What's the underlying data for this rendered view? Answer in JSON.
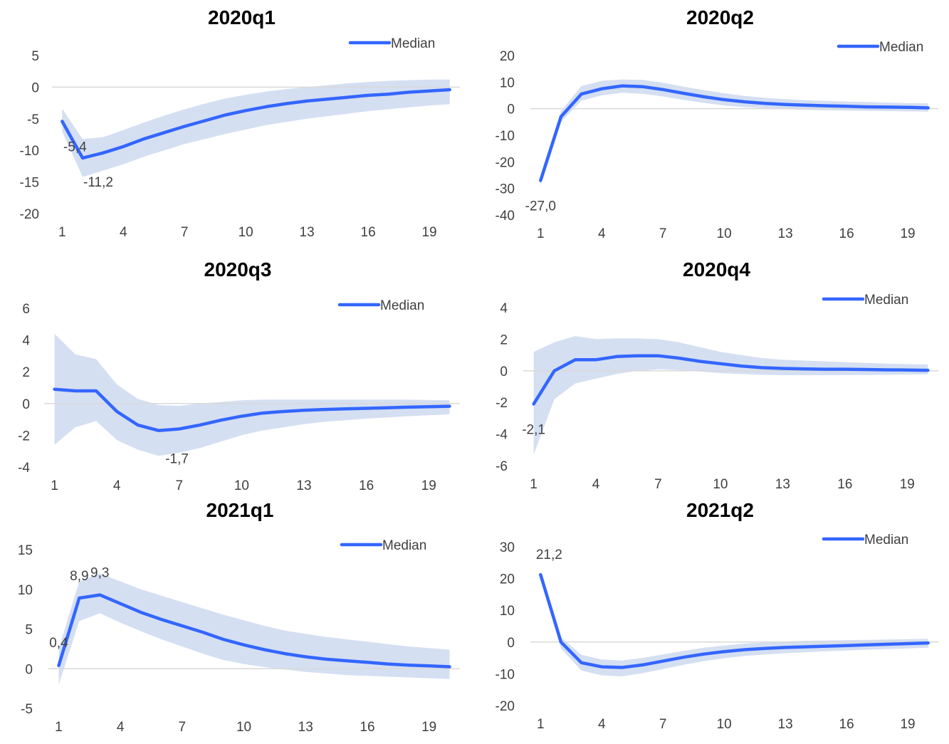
{
  "chart_data": [
    {
      "type": "line",
      "title": "2020q1",
      "x": [
        1,
        2,
        3,
        4,
        5,
        6,
        7,
        8,
        9,
        10,
        11,
        12,
        13,
        14,
        15,
        16,
        17,
        18,
        19,
        20
      ],
      "x_ticks": [
        1,
        4,
        7,
        10,
        13,
        16,
        19
      ],
      "y_ticks": [
        5,
        0,
        -5,
        -10,
        -15,
        -20
      ],
      "ylim": [
        -20,
        5
      ],
      "legend": "top-right",
      "series": [
        {
          "name": "Median",
          "color": "#3366ff",
          "values": [
            -5.4,
            -11.2,
            -10.4,
            -9.4,
            -8.2,
            -7.2,
            -6.2,
            -5.3,
            -4.4,
            -3.7,
            -3.1,
            -2.6,
            -2.2,
            -1.9,
            -1.6,
            -1.3,
            -1.1,
            -0.8,
            -0.6,
            -0.4
          ]
        }
      ],
      "band": {
        "color": "#d5dff2",
        "upper": [
          -3.4,
          -8.2,
          -7.9,
          -6.8,
          -5.6,
          -4.5,
          -3.5,
          -2.6,
          -1.8,
          -1.2,
          -0.7,
          -0.3,
          0.0,
          0.3,
          0.6,
          0.8,
          1.0,
          1.1,
          1.2,
          1.2
        ],
        "lower": [
          -7.0,
          -14.2,
          -13.2,
          -12.2,
          -11.0,
          -10.0,
          -9.0,
          -8.2,
          -7.4,
          -6.7,
          -6.0,
          -5.5,
          -5.0,
          -4.6,
          -4.2,
          -3.8,
          -3.5,
          -3.2,
          -2.9,
          -2.7
        ]
      },
      "data_labels": [
        {
          "x": 1,
          "text": "-5,4"
        },
        {
          "x": 2,
          "text": "-11,2"
        }
      ]
    },
    {
      "type": "line",
      "title": "2020q2",
      "x": [
        1,
        2,
        3,
        4,
        5,
        6,
        7,
        8,
        9,
        10,
        11,
        12,
        13,
        14,
        15,
        16,
        17,
        18,
        19,
        20
      ],
      "x_ticks": [
        1,
        4,
        7,
        10,
        13,
        16,
        19
      ],
      "y_ticks": [
        20,
        10,
        0,
        -10,
        -20,
        -30,
        -40
      ],
      "ylim": [
        -40,
        20
      ],
      "legend": "top-right",
      "series": [
        {
          "name": "Median",
          "color": "#3366ff",
          "values": [
            -27.0,
            -3.0,
            5.5,
            7.5,
            8.6,
            8.3,
            7.2,
            5.8,
            4.5,
            3.4,
            2.6,
            2.0,
            1.6,
            1.3,
            1.1,
            0.9,
            0.7,
            0.6,
            0.5,
            0.3
          ]
        }
      ],
      "band": {
        "color": "#d5dff2",
        "upper": [
          -25.0,
          -1.0,
          8.5,
          10.5,
          11.0,
          10.8,
          9.8,
          8.3,
          7.0,
          5.8,
          4.8,
          4.1,
          3.6,
          3.2,
          2.9,
          2.7,
          2.5,
          2.3,
          2.1,
          2.0
        ],
        "lower": [
          -29.0,
          -5.0,
          3.0,
          5.0,
          6.0,
          5.6,
          4.6,
          3.3,
          2.2,
          1.2,
          0.6,
          0.2,
          -0.2,
          -0.4,
          -0.6,
          -0.7,
          -0.8,
          -0.9,
          -1.0,
          -1.1
        ]
      },
      "data_labels": [
        {
          "x": 1,
          "text": "-27,0"
        }
      ]
    },
    {
      "type": "line",
      "title": "2020q3",
      "x": [
        1,
        2,
        3,
        4,
        5,
        6,
        7,
        8,
        9,
        10,
        11,
        12,
        13,
        14,
        15,
        16,
        17,
        18,
        19,
        20
      ],
      "x_ticks": [
        1,
        4,
        7,
        10,
        13,
        16,
        19
      ],
      "y_ticks": [
        6,
        4,
        2,
        0,
        -2,
        -4
      ],
      "ylim": [
        -4,
        6
      ],
      "legend": "top-right",
      "series": [
        {
          "name": "Median",
          "color": "#3366ff",
          "values": [
            0.9,
            0.8,
            0.8,
            -0.5,
            -1.35,
            -1.7,
            -1.6,
            -1.35,
            -1.05,
            -0.8,
            -0.6,
            -0.5,
            -0.42,
            -0.37,
            -0.33,
            -0.3,
            -0.27,
            -0.23,
            -0.2,
            -0.17
          ]
        }
      ],
      "band": {
        "color": "#d5dff2",
        "upper": [
          4.4,
          3.1,
          2.8,
          1.2,
          0.3,
          -0.1,
          -0.15,
          0.0,
          0.1,
          0.2,
          0.25,
          0.25,
          0.25,
          0.25,
          0.25,
          0.25,
          0.25,
          0.25,
          0.22,
          0.2
        ]
      },
      "band_lower": [
        -2.6,
        -1.5,
        -1.1,
        -2.3,
        -2.9,
        -3.3,
        -3.1,
        -2.8,
        -2.4,
        -2.0,
        -1.7,
        -1.5,
        -1.3,
        -1.15,
        -1.05,
        -0.95,
        -0.88,
        -0.8,
        -0.74,
        -0.68
      ],
      "data_labels": [
        {
          "x": 6,
          "text": "-1,7"
        }
      ]
    },
    {
      "type": "line",
      "title": "2020q4",
      "x": [
        1,
        2,
        3,
        4,
        5,
        6,
        7,
        8,
        9,
        10,
        11,
        12,
        13,
        14,
        15,
        16,
        17,
        18,
        19,
        20
      ],
      "x_ticks": [
        1,
        4,
        7,
        10,
        13,
        16,
        19
      ],
      "y_ticks": [
        4,
        2,
        0,
        -2,
        -4,
        -6
      ],
      "ylim": [
        -6,
        4
      ],
      "legend": "top-right",
      "series": [
        {
          "name": "Median",
          "color": "#3366ff",
          "values": [
            -2.1,
            0.0,
            0.7,
            0.7,
            0.9,
            0.95,
            0.95,
            0.8,
            0.6,
            0.45,
            0.3,
            0.2,
            0.15,
            0.12,
            0.1,
            0.1,
            0.08,
            0.06,
            0.05,
            0.03
          ]
        }
      ],
      "band": {
        "color": "#d5dff2",
        "upper": [
          1.2,
          1.8,
          2.2,
          2.0,
          2.05,
          2.05,
          2.0,
          1.8,
          1.5,
          1.2,
          1.0,
          0.8,
          0.7,
          0.65,
          0.6,
          0.55,
          0.5,
          0.45,
          0.42,
          0.4
        ]
      },
      "band_lower": [
        -5.3,
        -1.8,
        -0.8,
        -0.5,
        -0.2,
        0.0,
        0.1,
        0.05,
        -0.05,
        -0.15,
        -0.2,
        -0.25,
        -0.28,
        -0.28,
        -0.28,
        -0.27,
        -0.26,
        -0.25,
        -0.24,
        -0.22
      ],
      "data_labels": [
        {
          "x": 1,
          "text": "-2,1"
        }
      ]
    },
    {
      "type": "line",
      "title": "2021q1",
      "x": [
        1,
        2,
        3,
        4,
        5,
        6,
        7,
        8,
        9,
        10,
        11,
        12,
        13,
        14,
        15,
        16,
        17,
        18,
        19,
        20
      ],
      "x_ticks": [
        1,
        4,
        7,
        10,
        13,
        16,
        19
      ],
      "y_ticks": [
        15,
        10,
        5,
        0,
        -5
      ],
      "ylim": [
        -5,
        15
      ],
      "legend": "top-right",
      "series": [
        {
          "name": "Median",
          "color": "#3366ff",
          "values": [
            0.4,
            8.9,
            9.3,
            8.2,
            7.1,
            6.2,
            5.4,
            4.6,
            3.7,
            3.0,
            2.4,
            1.9,
            1.5,
            1.2,
            1.0,
            0.8,
            0.6,
            0.45,
            0.35,
            0.25
          ]
        }
      ],
      "band": {
        "color": "#d5dff2",
        "upper": [
          2.5,
          11.0,
          12.0,
          11.0,
          10.0,
          9.2,
          8.4,
          7.6,
          6.8,
          6.1,
          5.4,
          4.8,
          4.4,
          4.0,
          3.7,
          3.4,
          3.1,
          2.8,
          2.6,
          2.4
        ]
      },
      "band_lower": [
        -2.0,
        6.0,
        7.0,
        5.8,
        4.7,
        3.7,
        2.8,
        1.9,
        1.1,
        0.6,
        0.2,
        -0.1,
        -0.4,
        -0.6,
        -0.8,
        -0.9,
        -1.0,
        -1.1,
        -1.2,
        -1.3
      ],
      "data_labels": [
        {
          "x": 1,
          "text": "0,4"
        },
        {
          "x": 2,
          "text": "8,9"
        },
        {
          "x": 3,
          "text": "9,3"
        }
      ]
    },
    {
      "type": "line",
      "title": "2021q2",
      "x": [
        1,
        2,
        3,
        4,
        5,
        6,
        7,
        8,
        9,
        10,
        11,
        12,
        13,
        14,
        15,
        16,
        17,
        18,
        19,
        20
      ],
      "x_ticks": [
        1,
        4,
        7,
        10,
        13,
        16,
        19
      ],
      "y_ticks": [
        30,
        20,
        10,
        0,
        -10,
        -20
      ],
      "ylim": [
        -20,
        30
      ],
      "legend": "top-right",
      "series": [
        {
          "name": "Median",
          "color": "#3366ff",
          "values": [
            21.2,
            0.0,
            -6.5,
            -7.8,
            -8.0,
            -7.2,
            -6.0,
            -4.8,
            -3.8,
            -3.0,
            -2.4,
            -2.0,
            -1.7,
            -1.5,
            -1.3,
            -1.1,
            -0.9,
            -0.7,
            -0.5,
            -0.3
          ]
        }
      ],
      "band": {
        "color": "#d5dff2",
        "upper": [
          22.0,
          1.5,
          -4.0,
          -5.5,
          -5.8,
          -5.0,
          -3.9,
          -2.8,
          -1.8,
          -1.1,
          -0.5,
          -0.1,
          0.2,
          0.4,
          0.5,
          0.6,
          0.7,
          0.8,
          0.9,
          1.0
        ]
      },
      "band_lower": [
        20.0,
        -2.0,
        -9.0,
        -10.5,
        -10.8,
        -9.8,
        -8.5,
        -7.2,
        -6.0,
        -5.1,
        -4.4,
        -3.9,
        -3.5,
        -3.2,
        -2.9,
        -2.7,
        -2.4,
        -2.2,
        -2.0,
        -1.8
      ],
      "data_labels": [
        {
          "x": 1,
          "text": "21,2"
        }
      ]
    }
  ]
}
